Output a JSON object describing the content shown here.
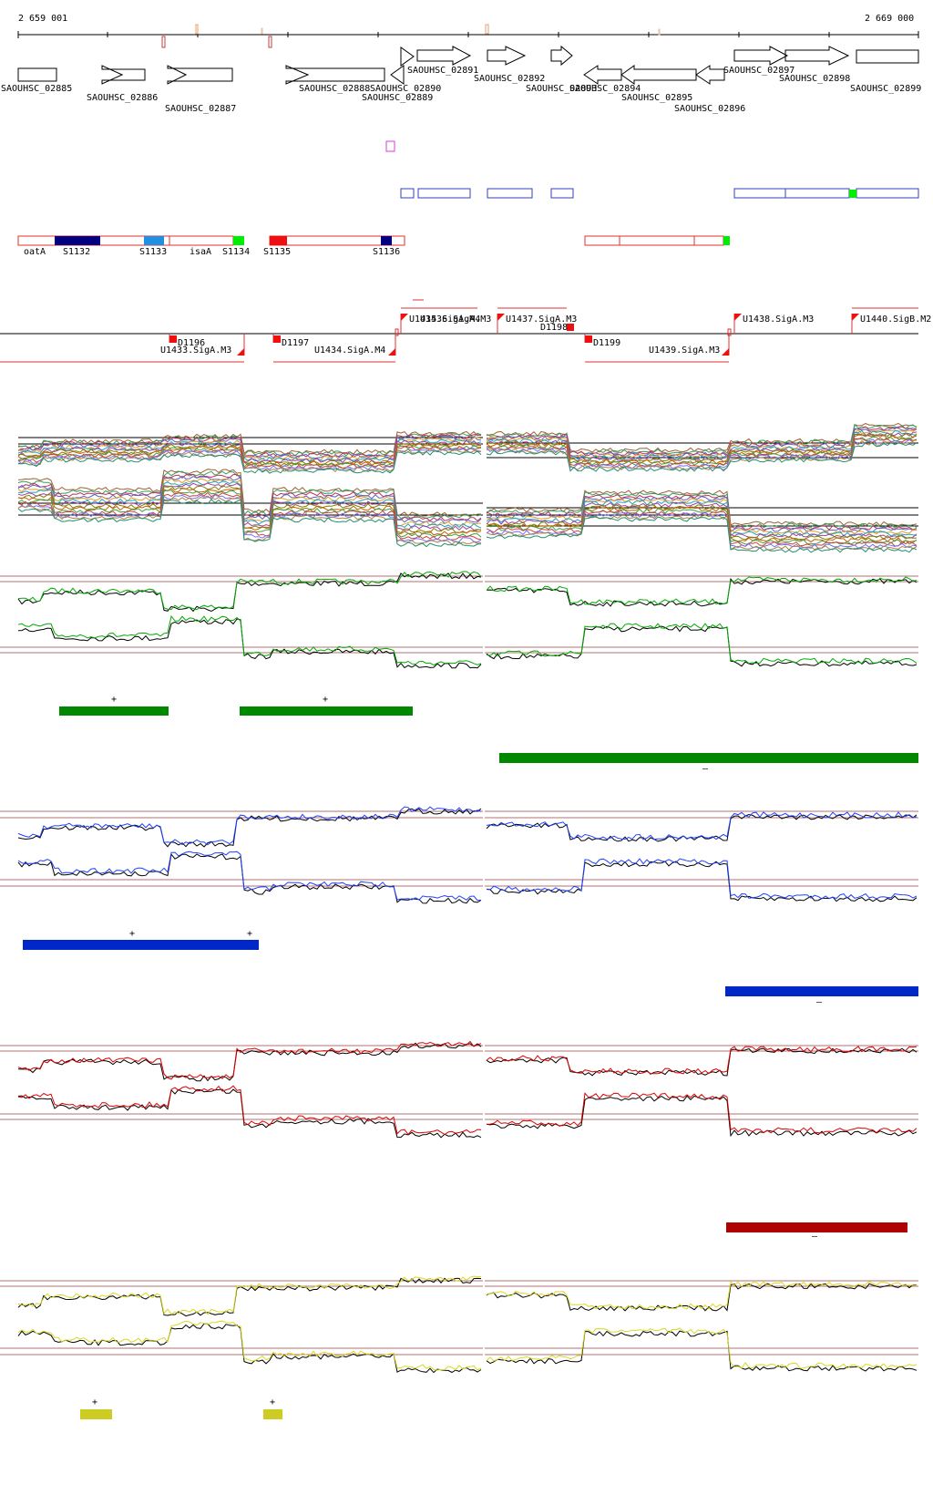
{
  "coords": {
    "start": "2 659 001",
    "end": "2 669 000"
  },
  "colors": {
    "gene": "#000000",
    "pos": "#d0d0d0",
    "tu_red": "#e03030",
    "blue": "#3040c0",
    "green": "#008800",
    "blue_track": "#2038c8",
    "red_track": "#c01010",
    "yellow": "#cccc22",
    "navy": "#000080",
    "skyblue": "#2090e0",
    "lime": "#00ee00",
    "magenta": "#d040d0"
  },
  "genes": [
    {
      "label": "SAOUHSC_02885"
    },
    {
      "label": "SAOUHSC_02886"
    },
    {
      "label": "SAOUHSC_02887"
    },
    {
      "label": "SAOUHSC_02888"
    },
    {
      "label": "SAOUHSC_02889"
    },
    {
      "label": "SAOUHSC_02890"
    },
    {
      "label": "SAOUHSC_02891"
    },
    {
      "label": "SAOUHSC_02892"
    },
    {
      "label": "SAOUHSC_02893"
    },
    {
      "label": "SAOUHSC_02894"
    },
    {
      "label": "SAOUHSC_02895"
    },
    {
      "label": "SAOUHSC_02896"
    },
    {
      "label": "SAOUHSC_02897"
    },
    {
      "label": "SAOUHSC_02898"
    },
    {
      "label": "SAOUHSC_02899"
    }
  ],
  "segments": [
    {
      "label": "oatA"
    },
    {
      "label": "S1132"
    },
    {
      "label": "S1133"
    },
    {
      "label": "isaA"
    },
    {
      "label": "S1134"
    },
    {
      "label": "S1135"
    },
    {
      "label": "S1136"
    }
  ],
  "promoters": [
    {
      "label": "U1435.SigA.M4"
    },
    {
      "label": "U1436.SigA.M3"
    },
    {
      "label": "U1437.SigA.M3"
    },
    {
      "label": "U1438.SigA.M3"
    },
    {
      "label": "U1440.SigB.M2"
    },
    {
      "label": "U1433.SigA.M3"
    },
    {
      "label": "U1434.SigA.M4"
    },
    {
      "label": "U1439.SigA.M3"
    }
  ],
  "terminators": [
    {
      "label": "D1196"
    },
    {
      "label": "D1197"
    },
    {
      "label": "D1198"
    },
    {
      "label": "D1199"
    }
  ],
  "panels": [
    {
      "name": "green",
      "marks": [
        "+",
        "+",
        "–"
      ]
    },
    {
      "name": "blue",
      "marks": [
        "+",
        "+",
        "–"
      ]
    },
    {
      "name": "red",
      "marks": [
        "–"
      ]
    },
    {
      "name": "yellow",
      "marks": [
        "+",
        "+"
      ]
    }
  ]
}
